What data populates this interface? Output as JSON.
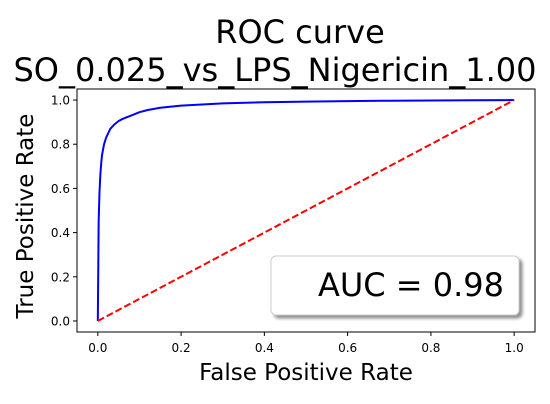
{
  "chart_data": {
    "type": "line",
    "title_line1": "ROC curve",
    "title_line2": "SO_0.025_vs_LPS_Nigericin_1.00",
    "xlabel": "False Positive Rate",
    "ylabel": "True Positive Rate",
    "xlim": [
      -0.05,
      1.05
    ],
    "ylim": [
      -0.05,
      1.05
    ],
    "x_ticks": [
      0.0,
      0.2,
      0.4,
      0.6,
      0.8,
      1.0
    ],
    "x_tick_labels": [
      "0.0",
      "0.2",
      "0.4",
      "0.6",
      "0.8",
      "1.0"
    ],
    "y_ticks": [
      0.0,
      0.2,
      0.4,
      0.6,
      0.8,
      1.0
    ],
    "y_tick_labels": [
      "0.0",
      "0.2",
      "0.4",
      "0.6",
      "0.8",
      "1.0"
    ],
    "grid": false,
    "series": [
      {
        "key": "roc",
        "color": "#0000ff",
        "style": "solid",
        "x": [
          0.0,
          0.002,
          0.004,
          0.006,
          0.008,
          0.01,
          0.015,
          0.02,
          0.03,
          0.04,
          0.05,
          0.06,
          0.08,
          0.1,
          0.12,
          0.15,
          0.2,
          0.25,
          0.3,
          0.4,
          0.5,
          0.6,
          0.7,
          0.8,
          0.9,
          1.0
        ],
        "y": [
          0.0,
          0.45,
          0.58,
          0.66,
          0.71,
          0.75,
          0.8,
          0.83,
          0.87,
          0.89,
          0.905,
          0.915,
          0.93,
          0.945,
          0.955,
          0.965,
          0.975,
          0.98,
          0.985,
          0.99,
          0.993,
          0.995,
          0.997,
          0.998,
          0.999,
          1.0
        ]
      },
      {
        "key": "diagonal",
        "color": "#ff0000",
        "style": "dashed",
        "x": [
          0.0,
          1.0
        ],
        "y": [
          0.0,
          1.0
        ]
      }
    ],
    "annotation": {
      "text": "AUC = 0.98",
      "location": "lower-right"
    }
  }
}
